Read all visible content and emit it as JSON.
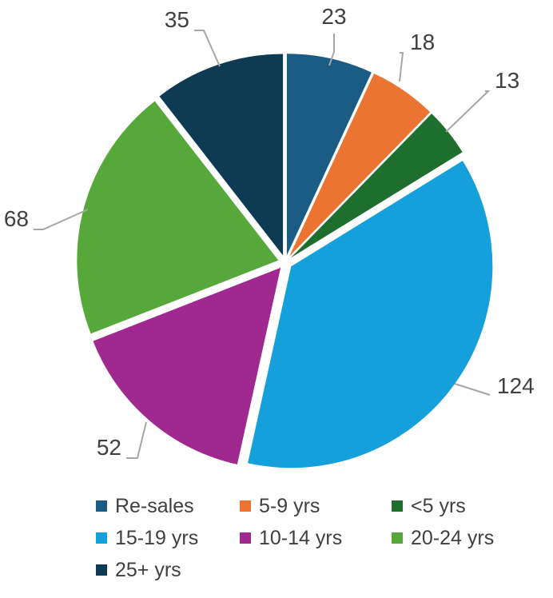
{
  "chart_data": {
    "type": "pie",
    "title": "",
    "categories": [
      "Re-sales",
      "5-9 yrs",
      "<5 yrs",
      "15-19 yrs",
      "10-14 yrs",
      "20-24 yrs",
      "25+ yrs"
    ],
    "values": [
      23,
      18,
      13,
      124,
      52,
      68,
      35
    ],
    "colors": [
      "#1b5c85",
      "#ec7432",
      "#1e6e2d",
      "#16a0db",
      "#a0298f",
      "#57a83a",
      "#0f3a54"
    ],
    "exploded": true,
    "start_angle_deg": 0,
    "direction": "clockwise",
    "data_labels": true,
    "legend_position": "bottom"
  }
}
